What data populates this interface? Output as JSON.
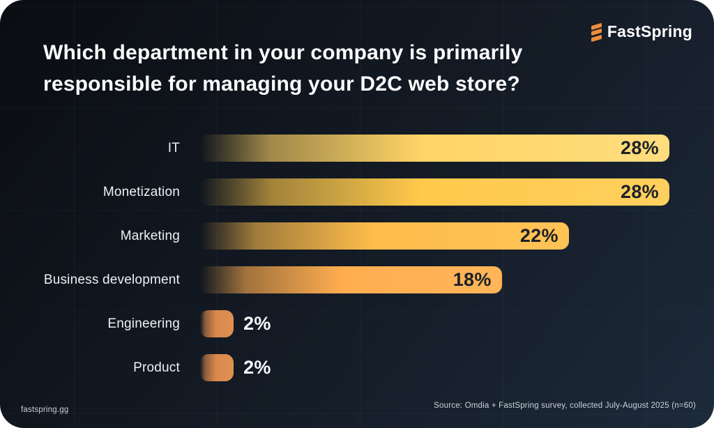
{
  "header": {
    "brand": "FastSpring",
    "title_line1": "Which department in your company is primarily",
    "title_line2": "responsible for managing your D2C web store?"
  },
  "footer": {
    "site": "fastspring.gg",
    "source": "Source: Omdia + FastSpring survey, collected July-August 2025 (n=60)"
  },
  "colors": {
    "background_dark": "#10151d",
    "background_light_corner": "#1d2a3a",
    "title_text": "#fbfcfd",
    "label_text": "#eef1f4",
    "value_text_inside": "#1d2127",
    "value_text_outside": "#f7f8fa",
    "logo_orange": "#f08c3a",
    "outer_frame": "#ffffff"
  },
  "chart_data": {
    "type": "bar",
    "orientation": "horizontal",
    "title": "Which department in your company is primarily responsible for managing your D2C web store?",
    "categories": [
      "IT",
      "Monetization",
      "Marketing",
      "Business development",
      "Engineering",
      "Product"
    ],
    "values": [
      28,
      28,
      22,
      18,
      2,
      2
    ],
    "value_labels": [
      "28%",
      "28%",
      "22%",
      "18%",
      "2%",
      "2%"
    ],
    "xlim": [
      0,
      28
    ],
    "xlabel": "",
    "ylabel": "",
    "legend": "none",
    "grid": "subtle",
    "bar_colors": [
      {
        "main": "#FFD466",
        "right": "#FFDD7E"
      },
      {
        "main": "#FFC94B",
        "right": "#FFD05E"
      },
      {
        "main": "#FFBD4B",
        "right": "#FFC355"
      },
      {
        "main": "#FFAD4F",
        "right": "#FFB559"
      },
      {
        "main": "#D9894B",
        "right": "#E09052"
      },
      {
        "main": "#D9894B",
        "right": "#E09052"
      }
    ]
  }
}
